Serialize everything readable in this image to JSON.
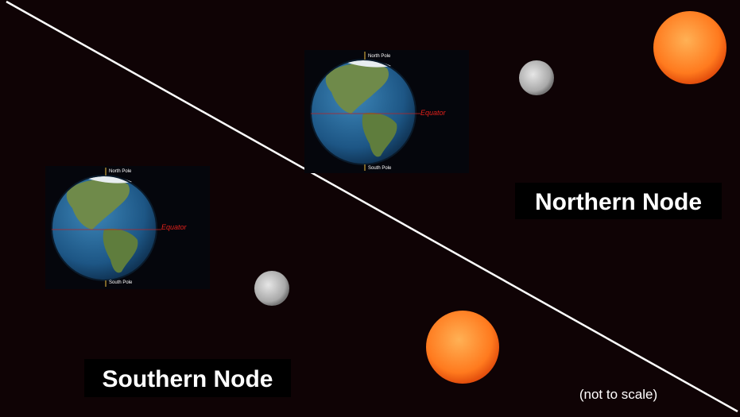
{
  "earths": [
    {
      "north_label": "North Pole",
      "south_label": "South Pole",
      "equator_label": "Equator"
    },
    {
      "north_label": "North Pole",
      "south_label": "South Pole",
      "equator_label": "Equator"
    }
  ],
  "labels": {
    "northern_node": "Northern Node",
    "southern_node": "Southern Node",
    "note": "(not to scale)"
  }
}
